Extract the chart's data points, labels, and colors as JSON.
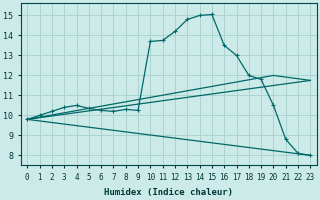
{
  "xlabel": "Humidex (Indice chaleur)",
  "bg_color": "#cceae8",
  "grid_color": "#aad4d0",
  "line_color": "#006868",
  "xlim": [
    -0.5,
    23.5
  ],
  "ylim": [
    7.5,
    15.6
  ],
  "xticks": [
    0,
    1,
    2,
    3,
    4,
    5,
    6,
    7,
    8,
    9,
    10,
    11,
    12,
    13,
    14,
    15,
    16,
    17,
    18,
    19,
    20,
    21,
    22,
    23
  ],
  "yticks": [
    8,
    9,
    10,
    11,
    12,
    13,
    14,
    15
  ],
  "main_x": [
    0,
    1,
    2,
    3,
    4,
    5,
    6,
    7,
    8,
    9,
    10,
    11,
    12,
    13,
    14,
    15,
    16,
    17,
    18,
    19,
    20,
    21,
    22,
    23
  ],
  "main_y": [
    9.8,
    10.0,
    10.2,
    10.4,
    10.5,
    10.35,
    10.25,
    10.2,
    10.3,
    10.25,
    13.7,
    13.75,
    14.2,
    14.8,
    15.0,
    15.05,
    13.5,
    13.0,
    12.0,
    11.8,
    10.5,
    8.8,
    8.1,
    8.0
  ],
  "trend1_x": [
    0,
    23
  ],
  "trend1_y": [
    9.8,
    11.75
  ],
  "trend2_x": [
    0,
    20,
    23
  ],
  "trend2_y": [
    9.8,
    12.0,
    11.75
  ],
  "trend3_x": [
    0,
    23
  ],
  "trend3_y": [
    9.8,
    8.0
  ],
  "xtick_fontsize": 5.5,
  "ytick_fontsize": 6.0,
  "xlabel_fontsize": 6.5,
  "tick_color": "#003838",
  "spine_color": "#004848"
}
